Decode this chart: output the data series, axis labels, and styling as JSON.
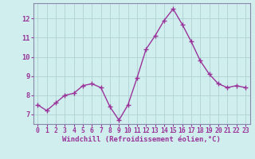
{
  "x": [
    0,
    1,
    2,
    3,
    4,
    5,
    6,
    7,
    8,
    9,
    10,
    11,
    12,
    13,
    14,
    15,
    16,
    17,
    18,
    19,
    20,
    21,
    22,
    23
  ],
  "y": [
    7.5,
    7.2,
    7.6,
    8.0,
    8.1,
    8.5,
    8.6,
    8.4,
    7.4,
    6.7,
    7.5,
    8.9,
    10.4,
    11.1,
    11.9,
    12.5,
    11.7,
    10.8,
    9.8,
    9.1,
    8.6,
    8.4,
    8.5,
    8.4
  ],
  "line_color": "#993399",
  "marker_color": "#993399",
  "bg_color": "#d0eeee",
  "grid_color": "#aacccc",
  "xlabel": "Windchill (Refroidissement éolien,°C)",
  "xlabel_color": "#993399",
  "tick_color": "#993399",
  "ylim": [
    6.5,
    12.8
  ],
  "yticks": [
    7,
    8,
    9,
    10,
    11,
    12
  ],
  "xlim": [
    -0.5,
    23.5
  ],
  "border_color": "#8888aa",
  "tick_fontsize": 5.8,
  "xlabel_fontsize": 6.5
}
